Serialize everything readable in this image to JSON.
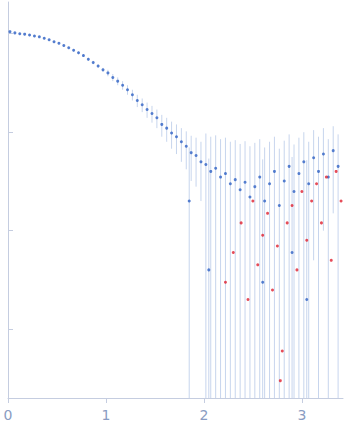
{
  "chart_data": {
    "type": "scatter",
    "log": "y",
    "grid": false,
    "tick_labels": "x",
    "xlim": [
      0,
      3.42
    ],
    "xticks": [
      0,
      1,
      2,
      3
    ],
    "ylim": [
      0.0002,
      2.1
    ],
    "yticks": [
      0.001,
      0.01,
      0.1,
      1
    ],
    "series": [
      {
        "color": "#2f62c4",
        "marker": "circle",
        "x": [
          0.02,
          0.07,
          0.12,
          0.17,
          0.22,
          0.27,
          0.32,
          0.37,
          0.42,
          0.47,
          0.52,
          0.57,
          0.62,
          0.67,
          0.72,
          0.77,
          0.82,
          0.87,
          0.92,
          0.97,
          1.02,
          1.07,
          1.12,
          1.17,
          1.22,
          1.27,
          1.32,
          1.37,
          1.42,
          1.47,
          1.52,
          1.57,
          1.62,
          1.67,
          1.72,
          1.77,
          1.82,
          1.87,
          1.92,
          1.97,
          2.02,
          2.07,
          2.12,
          2.17,
          2.22,
          2.27,
          2.32,
          2.37,
          2.42,
          2.47,
          2.52,
          2.57,
          2.62,
          2.67,
          2.72,
          2.77,
          2.82,
          2.87,
          2.92,
          2.97,
          3.02,
          3.07,
          3.12,
          3.17,
          3.22,
          3.27,
          3.32,
          3.37,
          1.85,
          2.05,
          2.6,
          3.05,
          2.9
        ],
        "values": [
          1.05,
          1.02,
          1.0,
          0.99,
          0.97,
          0.95,
          0.93,
          0.9,
          0.87,
          0.83,
          0.8,
          0.76,
          0.72,
          0.68,
          0.64,
          0.6,
          0.55,
          0.51,
          0.47,
          0.43,
          0.4,
          0.36,
          0.33,
          0.3,
          0.27,
          0.24,
          0.21,
          0.19,
          0.17,
          0.155,
          0.14,
          0.12,
          0.11,
          0.098,
          0.09,
          0.08,
          0.072,
          0.062,
          0.058,
          0.05,
          0.047,
          0.04,
          0.043,
          0.035,
          0.038,
          0.03,
          0.033,
          0.026,
          0.031,
          0.022,
          0.028,
          0.035,
          0.02,
          0.03,
          0.04,
          0.018,
          0.032,
          0.045,
          0.025,
          0.038,
          0.05,
          0.03,
          0.055,
          0.04,
          0.06,
          0.035,
          0.065,
          0.045,
          0.02,
          0.004,
          0.003,
          0.002,
          0.006
        ],
        "errors": [
          0.02,
          0.02,
          0.02,
          0.02,
          0.02,
          0.02,
          0.02,
          0.02,
          0.02,
          0.02,
          0.02,
          0.02,
          0.02,
          0.02,
          0.02,
          0.02,
          0.02,
          0.02,
          0.02,
          0.02,
          0.03,
          0.03,
          0.03,
          0.03,
          0.03,
          0.03,
          0.03,
          0.03,
          0.03,
          0.03,
          0.03,
          0.03,
          0.03,
          0.03,
          0.03,
          0.03,
          0.03,
          0.03,
          0.03,
          0.03,
          0.05,
          0.05,
          0.05,
          0.05,
          0.05,
          0.05,
          0.05,
          0.05,
          0.05,
          0.05,
          0.05,
          0.05,
          0.05,
          0.05,
          0.05,
          0.05,
          0.05,
          0.05,
          0.05,
          0.05,
          0.05,
          0.05,
          0.05,
          0.05,
          0.05,
          0.05,
          0.05,
          0.05,
          0.05,
          0.05,
          0.05,
          0.05,
          0.05
        ]
      },
      {
        "color": "#e02030",
        "marker": "circle",
        "x": [
          2.22,
          2.3,
          2.38,
          2.45,
          2.5,
          2.55,
          2.6,
          2.65,
          2.7,
          2.75,
          2.8,
          2.85,
          2.9,
          2.95,
          3.0,
          3.05,
          3.1,
          3.15,
          3.2,
          3.25,
          3.3,
          3.35,
          3.4,
          2.78
        ],
        "values": [
          0.003,
          0.006,
          0.012,
          0.002,
          0.02,
          0.0045,
          0.009,
          0.015,
          0.0025,
          0.007,
          0.0006,
          0.012,
          0.018,
          0.004,
          0.025,
          0.008,
          0.02,
          0.03,
          0.012,
          0.035,
          0.005,
          0.04,
          0.02,
          0.0003
        ]
      }
    ]
  }
}
